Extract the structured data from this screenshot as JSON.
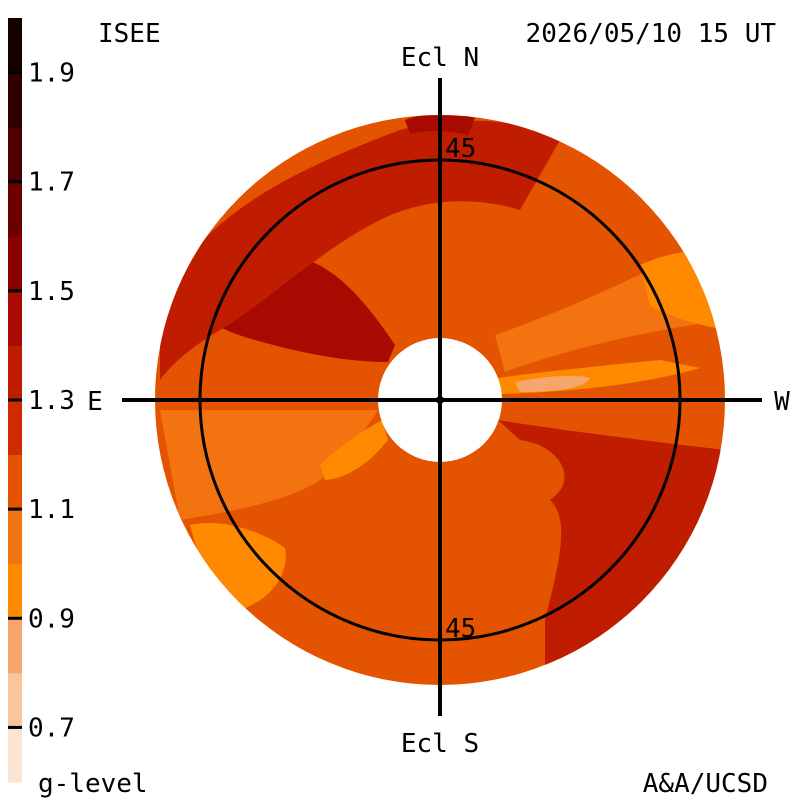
{
  "header": {
    "source": "ISEE",
    "timestamp": "2026/05/10 15 UT"
  },
  "footer": {
    "credit": "A&A/UCSD"
  },
  "chart_data": {
    "type": "heatmap",
    "title": "",
    "colorbar": {
      "label": "g-level",
      "ticks": [
        "1.9",
        "1.7",
        "1.5",
        "1.3",
        "1.1",
        "0.9",
        "0.7"
      ],
      "tick_values": [
        1.9,
        1.7,
        1.5,
        1.3,
        1.1,
        0.9,
        0.7
      ],
      "range": [
        0.6,
        2.0
      ],
      "colors": [
        "#fbe4d2",
        "#f9c59c",
        "#f6a66a",
        "#ff8a00",
        "#f47311",
        "#e45400",
        "#cf2a00",
        "#c01c00",
        "#a60a00",
        "#8a0000",
        "#6c0000",
        "#4d0000",
        "#2e0000",
        "#150000"
      ]
    },
    "directions": {
      "north": "Ecl N",
      "south": "Ecl S",
      "east": "E",
      "west": "W"
    },
    "ring_labels": [
      "45",
      "45"
    ],
    "ring_elongation_deg": 45,
    "regions": [
      {
        "name": "background",
        "g": 1.15
      },
      {
        "name": "ne-dark-lobe",
        "g": 1.4
      },
      {
        "name": "ne-outer-band",
        "g": 1.3
      },
      {
        "name": "top-dark-cap",
        "g": 1.45
      },
      {
        "name": "nw-light-wedge",
        "g": 1.05
      },
      {
        "name": "w-bright-streak",
        "g": 0.95
      },
      {
        "name": "w-bright-core",
        "g": 0.85
      },
      {
        "name": "nw-bright-edge",
        "g": 0.9
      },
      {
        "name": "se-dark-region",
        "g": 1.3
      },
      {
        "name": "sw-medium-region",
        "g": 1.05
      },
      {
        "name": "sw-bright-patch",
        "g": 0.95
      },
      {
        "name": "e-light-plume",
        "g": 0.95
      },
      {
        "name": "sw-bright-edge",
        "g": 0.9
      }
    ]
  }
}
